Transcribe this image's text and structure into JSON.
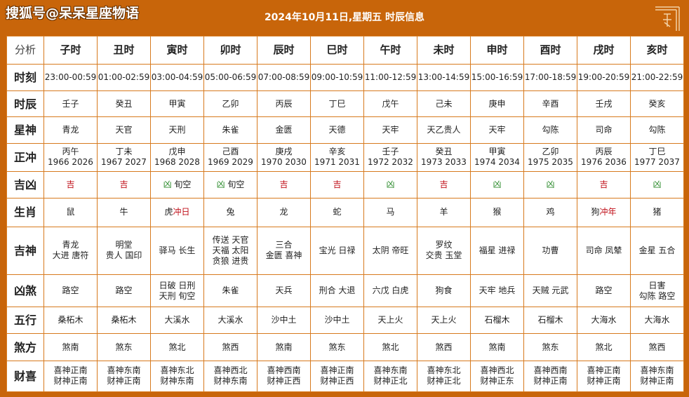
{
  "watermark": "搜狐号@呆呆星座物语",
  "title": "2024年10月11日,星期五 时辰信息",
  "colors": {
    "frame": "#c8650a",
    "red": "#c0101a",
    "green": "#2a8a2a"
  },
  "corner_icon": "ornamental-corner-icon",
  "header_row": {
    "label": "分析",
    "hours": [
      "子时",
      "丑时",
      "寅时",
      "卯时",
      "辰时",
      "巳时",
      "午时",
      "未时",
      "申时",
      "酉时",
      "戌时",
      "亥时"
    ]
  },
  "rows": {
    "shike": {
      "label": "时刻",
      "cells": [
        "23:00-00:59",
        "01:00-02:59",
        "03:00-04:59",
        "05:00-06:59",
        "07:00-08:59",
        "09:00-10:59",
        "11:00-12:59",
        "13:00-14:59",
        "15:00-16:59",
        "17:00-18:59",
        "19:00-20:59",
        "21:00-22:59"
      ]
    },
    "shichen": {
      "label": "时辰",
      "cells": [
        "壬子",
        "癸丑",
        "甲寅",
        "乙卯",
        "丙辰",
        "丁巳",
        "戊午",
        "己未",
        "庚申",
        "辛酉",
        "壬戌",
        "癸亥"
      ]
    },
    "xingshen": {
      "label": "星神",
      "cells": [
        "青龙",
        "天官",
        "天刑",
        "朱雀",
        "金匮",
        "天德",
        "天牢",
        "天乙贵人",
        "天牢",
        "勾陈",
        "司命",
        "勾陈"
      ]
    },
    "zhengchong": {
      "label": "正冲",
      "cells": [
        {
          "l1": "丙午",
          "l2": "1966 2026"
        },
        {
          "l1": "丁未",
          "l2": "1967 2027"
        },
        {
          "l1": "戊申",
          "l2": "1968 2028"
        },
        {
          "l1": "己酉",
          "l2": "1969 2029"
        },
        {
          "l1": "庚戌",
          "l2": "1970 2030"
        },
        {
          "l1": "辛亥",
          "l2": "1971 2031"
        },
        {
          "l1": "壬子",
          "l2": "1972 2032"
        },
        {
          "l1": "癸丑",
          "l2": "1973 2033"
        },
        {
          "l1": "甲寅",
          "l2": "1974 2034"
        },
        {
          "l1": "乙卯",
          "l2": "1975 2035"
        },
        {
          "l1": "丙辰",
          "l2": "1976 2036"
        },
        {
          "l1": "丁巳",
          "l2": "1977 2037"
        }
      ]
    },
    "jixiong": {
      "label": "吉凶",
      "cells": [
        {
          "a": "吉",
          "b": ""
        },
        {
          "a": "吉",
          "b": ""
        },
        {
          "a": "凶",
          "b": "旬空"
        },
        {
          "a": "凶",
          "b": "旬空"
        },
        {
          "a": "吉",
          "b": ""
        },
        {
          "a": "吉",
          "b": ""
        },
        {
          "a": "凶",
          "b": ""
        },
        {
          "a": "吉",
          "b": ""
        },
        {
          "a": "凶",
          "b": ""
        },
        {
          "a": "凶",
          "b": ""
        },
        {
          "a": "吉",
          "b": ""
        },
        {
          "a": "凶",
          "b": ""
        }
      ]
    },
    "shengxiao": {
      "label": "生肖",
      "cells": [
        {
          "a": "鼠",
          "b": ""
        },
        {
          "a": "牛",
          "b": ""
        },
        {
          "a": "虎",
          "b": "冲日"
        },
        {
          "a": "兔",
          "b": ""
        },
        {
          "a": "龙",
          "b": ""
        },
        {
          "a": "蛇",
          "b": ""
        },
        {
          "a": "马",
          "b": ""
        },
        {
          "a": "羊",
          "b": ""
        },
        {
          "a": "猴",
          "b": ""
        },
        {
          "a": "鸡",
          "b": ""
        },
        {
          "a": "狗",
          "b": "冲年"
        },
        {
          "a": "猪",
          "b": ""
        }
      ]
    },
    "jishen": {
      "label": "吉神",
      "cells": [
        [
          "青龙",
          "大进 唐符"
        ],
        [
          "明堂",
          "贵人 国印"
        ],
        [
          "驿马 长生"
        ],
        [
          "传送 天官",
          "天福 太阳",
          "贪狼 进贵"
        ],
        [
          "三合",
          "金匮 喜神"
        ],
        [
          "宝光 日禄"
        ],
        [
          "太阴 帝旺"
        ],
        [
          "罗纹",
          "交贵 玉堂"
        ],
        [
          "福星 进禄"
        ],
        [
          "功曹"
        ],
        [
          "司命 凤辇"
        ],
        [
          "金星 五合"
        ]
      ]
    },
    "xiongsha": {
      "label": "凶煞",
      "cells": [
        [
          "路空"
        ],
        [
          "路空"
        ],
        [
          "日破 日刑",
          "天刑 旬空"
        ],
        [
          "朱雀"
        ],
        [
          "天兵"
        ],
        [
          "刑合 大退"
        ],
        [
          "六戊 白虎"
        ],
        [
          "狗食"
        ],
        [
          "天牢 地兵"
        ],
        [
          "天贼 元武"
        ],
        [
          "路空"
        ],
        [
          "日害",
          "勾陈 路空"
        ]
      ]
    },
    "wuxing": {
      "label": "五行",
      "cells": [
        "桑柘木",
        "桑柘木",
        "大溪水",
        "大溪水",
        "沙中土",
        "沙中土",
        "天上火",
        "天上火",
        "石榴木",
        "石榴木",
        "大海水",
        "大海水"
      ]
    },
    "shafang": {
      "label": "煞方",
      "cells": [
        "煞南",
        "煞东",
        "煞北",
        "煞西",
        "煞南",
        "煞东",
        "煞北",
        "煞西",
        "煞南",
        "煞东",
        "煞北",
        "煞西"
      ]
    },
    "caixi": {
      "label": "财喜",
      "cells": [
        {
          "l1": "喜神正南",
          "l2": "财神正南"
        },
        {
          "l1": "喜神东南",
          "l2": "财神正南"
        },
        {
          "l1": "喜神东北",
          "l2": "财神东南"
        },
        {
          "l1": "喜神西北",
          "l2": "财神东南"
        },
        {
          "l1": "喜神西南",
          "l2": "财神正西"
        },
        {
          "l1": "喜神正南",
          "l2": "财神正西"
        },
        {
          "l1": "喜神东南",
          "l2": "财神正北"
        },
        {
          "l1": "喜神东北",
          "l2": "财神正北"
        },
        {
          "l1": "喜神西北",
          "l2": "财神正东"
        },
        {
          "l1": "喜神西南",
          "l2": "财神正南"
        },
        {
          "l1": "喜神正南",
          "l2": "财神正南"
        },
        {
          "l1": "喜神东南",
          "l2": "财神正南"
        }
      ]
    }
  }
}
